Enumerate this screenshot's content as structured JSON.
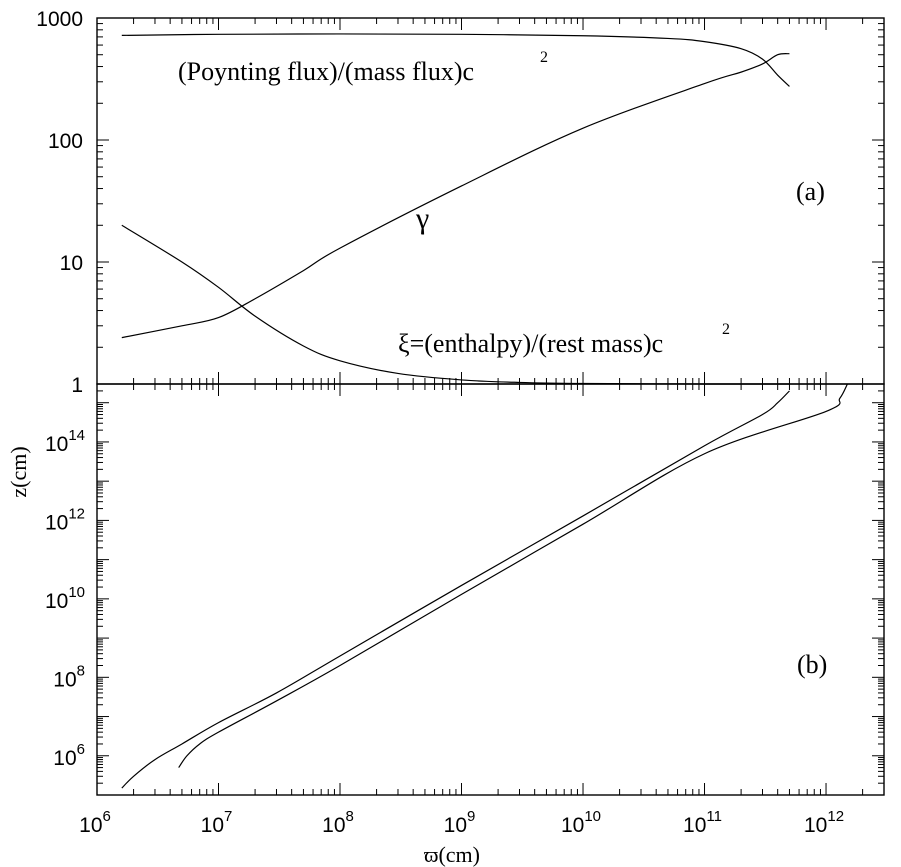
{
  "chart_data": [
    {
      "panel": "(a)",
      "type": "line",
      "x_scale": "log",
      "y_scale": "log",
      "xlim": [
        1000000,
        3000000000000
      ],
      "ylim": [
        1,
        1000
      ],
      "y_tick_labels": [
        "1",
        "10",
        "100",
        "1000"
      ],
      "y_ticks": [
        1,
        10,
        100,
        1000
      ],
      "annotations": {
        "poynting": "(Poynting flux)/(mass flux)c",
        "poynting_sup": "2",
        "gamma": "γ",
        "xi": "ξ=(enthalpy)/(rest mass)c",
        "xi_sup": "2",
        "panel_label": "(a)"
      },
      "series": [
        {
          "key": "poynting",
          "x": [
            1600000.0,
            10000000.0,
            100000000.0,
            1000000000.0,
            10000000000.0,
            50000000000.0,
            100000000000.0,
            200000000000.0,
            300000000000.0,
            400000000000.0,
            500000000000.0
          ],
          "y": [
            720,
            735,
            740,
            735,
            715,
            680,
            640,
            560,
            460,
            340,
            275
          ]
        },
        {
          "key": "gamma",
          "x": [
            1600000.0,
            5000000.0,
            10000000.0,
            20000000.0,
            50000000.0,
            100000000.0,
            1000000000.0,
            10000000000.0,
            100000000000.0,
            200000000000.0,
            300000000000.0,
            400000000000.0,
            500000000000.0
          ],
          "y": [
            2.4,
            3.0,
            3.5,
            5.0,
            8.5,
            13,
            42,
            125,
            290,
            360,
            420,
            500,
            510
          ]
        },
        {
          "key": "xi",
          "x": [
            1600000.0,
            5000000.0,
            10000000.0,
            20000000.0,
            50000000.0,
            100000000.0,
            300000000.0,
            1000000000.0,
            3000000000.0,
            10000000000.0,
            100000000000.0,
            500000000000.0
          ],
          "y": [
            20,
            10,
            6.2,
            3.6,
            2.05,
            1.55,
            1.22,
            1.08,
            1.03,
            1.01,
            1.0,
            1.0
          ]
        }
      ]
    },
    {
      "panel": "(b)",
      "type": "line",
      "x_scale": "log",
      "y_scale": "log",
      "xlim": [
        1000000,
        3000000000000
      ],
      "ylim": [
        100000,
        3000000000000000
      ],
      "xlabel": "ϖ(cm)",
      "ylabel": "z(cm)",
      "x_ticks": [
        1000000.0,
        10000000.0,
        100000000.0,
        1000000000.0,
        10000000000.0,
        100000000000.0,
        1000000000000.0
      ],
      "x_tick_labels": [
        {
          "base": "10",
          "exp": "6"
        },
        {
          "base": "10",
          "exp": "7"
        },
        {
          "base": "10",
          "exp": "8"
        },
        {
          "base": "10",
          "exp": "9"
        },
        {
          "base": "10",
          "exp": "10"
        },
        {
          "base": "10",
          "exp": "11"
        },
        {
          "base": "10",
          "exp": "12"
        }
      ],
      "y_ticks": [
        1000000.0,
        100000000.0,
        10000000000.0,
        1000000000000.0,
        100000000000000.0
      ],
      "y_tick_labels": [
        {
          "base": "10",
          "exp": "6"
        },
        {
          "base": "10",
          "exp": "8"
        },
        {
          "base": "10",
          "exp": "10"
        },
        {
          "base": "10",
          "exp": "12"
        },
        {
          "base": "10",
          "exp": "14"
        }
      ],
      "panel_label": "(b)",
      "series": [
        {
          "key": "inner",
          "x": [
            1600000.0,
            2000000.0,
            3000000.0,
            5000000.0,
            10000000.0,
            30000000.0,
            100000000.0,
            1000000000.0,
            10000000000.0,
            100000000000.0,
            300000000000.0,
            400000000000.0,
            500000000000.0
          ],
          "y": [
            150000.0,
            300000.0,
            800000.0,
            2000000.0,
            7000000.0,
            40000000.0,
            350000000.0,
            22000000000.0,
            1300000000000.0,
            80000000000000.0,
            500000000000000.0,
            1000000000000000.0,
            2000000000000000.0
          ]
        },
        {
          "key": "outer",
          "x": [
            4700000.0,
            5500000.0,
            7000000.0,
            10000000.0,
            30000000.0,
            100000000.0,
            1000000000.0,
            10000000000.0,
            100000000000.0,
            1000000000000.0,
            1300000000000.0,
            1500000000000.0
          ],
          "y": [
            500000.0,
            1000000.0,
            2000000.0,
            4000000.0,
            25000000.0,
            200000000.0,
            13000000000.0,
            800000000000.0,
            50000000000000.0,
            600000000000000.0,
            1300000000000000.0,
            3000000000000000.0
          ]
        }
      ]
    }
  ]
}
